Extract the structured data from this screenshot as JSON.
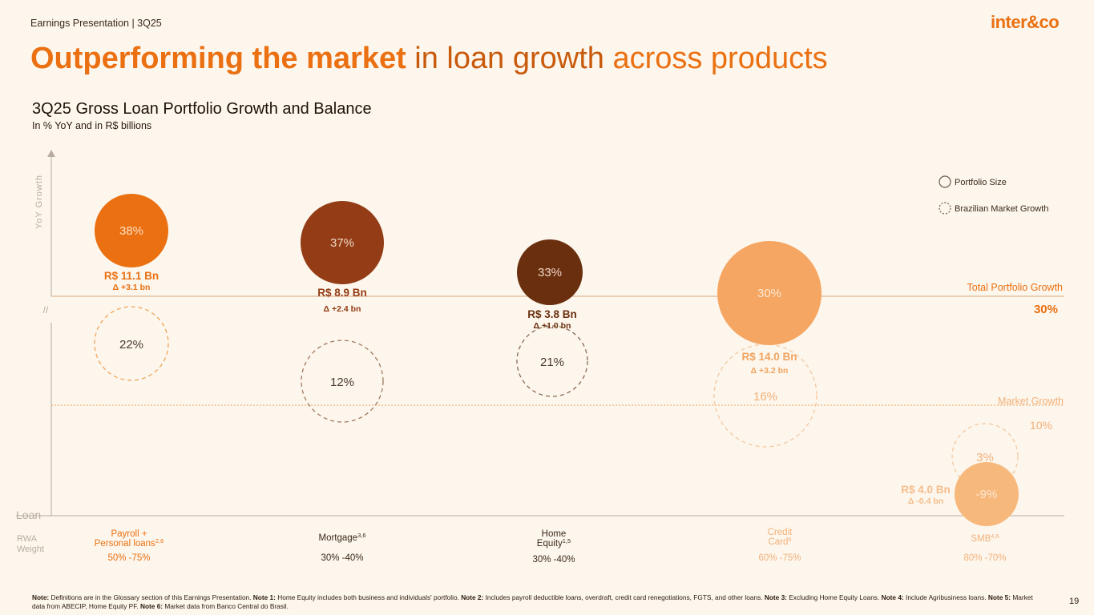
{
  "header": {
    "label": "Earnings Presentation | 3Q25",
    "logo": "inter&co",
    "page_number": "19"
  },
  "title": {
    "part1": "Outperforming the market",
    "part2": " in loan growth",
    "part3": " across products"
  },
  "subtitle": "3Q25 Gross Loan Portfolio Growth and Balance",
  "subsubtitle": "In % YoY and in R$ billions",
  "note": {
    "segments": [
      {
        "bold": true,
        "text": "Note: "
      },
      {
        "bold": false,
        "text": "Definitions are in the Glossary section of this Earnings Presentation. "
      },
      {
        "bold": true,
        "text": "Note 1: "
      },
      {
        "bold": false,
        "text": "Home Equity includes both business and individuals' portfolio. "
      },
      {
        "bold": true,
        "text": "Note 2: "
      },
      {
        "bold": false,
        "text": "Includes payroll deductible loans, overdraft, credit card renegotiations, FGTS, and other loans. "
      },
      {
        "bold": true,
        "text": "Note 3: "
      },
      {
        "bold": false,
        "text": "Excluding Home Equity Loans. "
      },
      {
        "bold": true,
        "text": "Note 4: "
      },
      {
        "bold": false,
        "text": "Include Agribusiness loans. "
      },
      {
        "bold": true,
        "text": "Note 5: "
      },
      {
        "bold": false,
        "text": "Market data from ABECIP, Home Equity PF.  "
      },
      {
        "bold": true,
        "text": "Note 6: "
      },
      {
        "bold": false,
        "text": "Market data from Banco Central do Brasil."
      }
    ]
  },
  "chart_data": {
    "type": "scatter",
    "title": "3Q25 Gross Loan Portfolio Growth and Balance",
    "subtitle": "In % YoY and in R$ billions",
    "ylabel": "YoY Growth",
    "xlabel": "Loan",
    "row_label": "RWA Weight",
    "axis_break": "//",
    "legend": {
      "position": "top-right",
      "items": [
        "Portfolio Size",
        "Brazilian Market Growth"
      ]
    },
    "reference_lines": [
      {
        "name": "Total Portfolio Growth",
        "value": 30,
        "label": "30%"
      },
      {
        "name": "Market Growth",
        "value": 10,
        "label": "10%"
      }
    ],
    "series": [
      {
        "category": "Payroll + Personal loans",
        "sup": "2,6",
        "growth": 38,
        "growth_label": "38%",
        "balance": 11.1,
        "balance_label": "R$ 11.1 Bn",
        "delta_label": "Δ +3.1 bn",
        "market_growth": 22,
        "market_label": "22%",
        "rwa": "50% -75%",
        "color": "#ea7012"
      },
      {
        "category": "Mortgage",
        "sup": "3,6",
        "growth": 37,
        "growth_label": "37%",
        "balance": 8.9,
        "balance_label": "R$ 8.9 Bn",
        "delta_label": "Δ +2.4 bn",
        "market_growth": 12,
        "market_label": "12%",
        "rwa": "30% -40%",
        "color": "#933c15"
      },
      {
        "category": "Home Equity",
        "sup": "1,5",
        "growth": 33,
        "growth_label": "33%",
        "balance": 3.8,
        "balance_label": "R$ 3.8 Bn",
        "delta_label": "Δ +1.0 bn",
        "market_growth": 21,
        "market_label": "21%",
        "rwa": "30% -40%",
        "color": "#6a2f0e"
      },
      {
        "category": "Credit Card",
        "sup": "6",
        "growth": 30,
        "growth_label": "30%",
        "balance": 14.0,
        "balance_label": "R$ 14.0 Bn",
        "delta_label": "Δ +3.2 bn",
        "market_growth": 16,
        "market_label": "16%",
        "rwa": "60% -75%",
        "color": "#f5a662"
      },
      {
        "category": "SMB",
        "sup": "4,6",
        "growth": -9,
        "growth_label": "-9%",
        "balance": 4.0,
        "balance_label": "R$ 4.0 Bn",
        "delta_label": "Δ -0.4 bn",
        "market_growth": 3,
        "market_label": "3%",
        "rwa": "80% -70%",
        "color": "#f7b87c"
      }
    ]
  }
}
